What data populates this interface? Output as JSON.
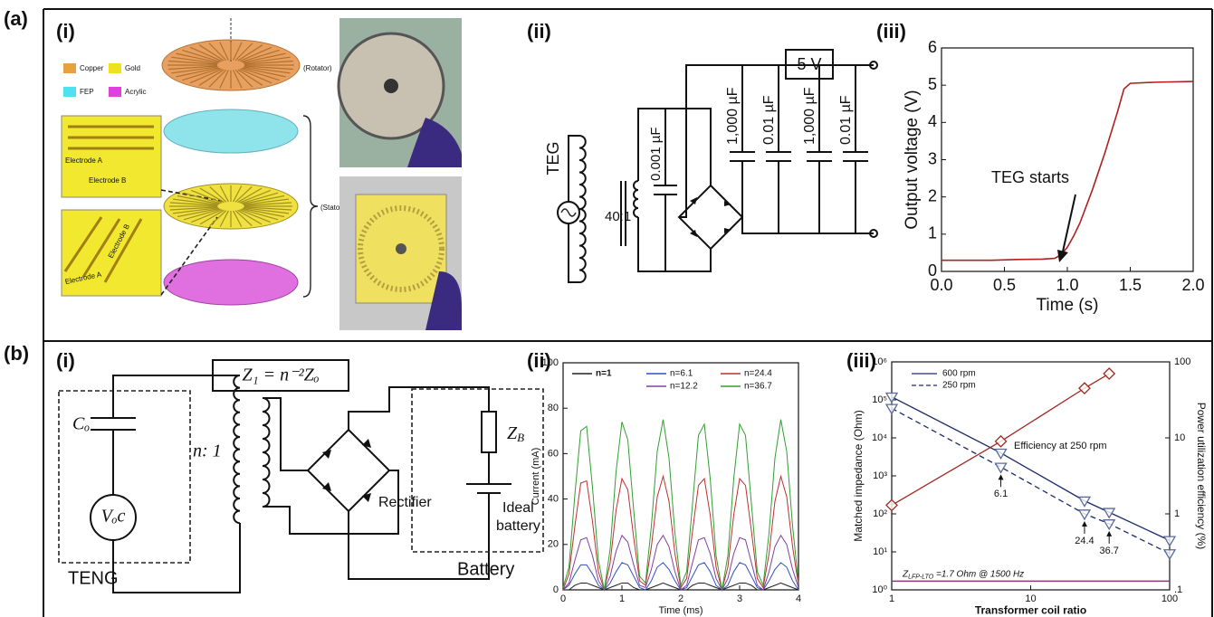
{
  "figure": {
    "panel_labels": [
      "(a)",
      "(b)"
    ],
    "subpanel_labels": [
      "(i)",
      "(ii)",
      "(iii)",
      "(i)",
      "(ii)",
      "(iii)"
    ],
    "a_i": {
      "materials": [
        "Copper",
        "Gold",
        "FEP",
        "Acrylic"
      ],
      "rotator": "(Rotator)",
      "stator": "(Stator)",
      "inset_top": [
        "Electrode A",
        "Electrode B"
      ],
      "inset_bottom": [
        "Electrode B",
        "Electrode A"
      ]
    },
    "a_ii": {
      "source": "TEG",
      "ratio": "40:1",
      "input_cap": "0.001 µF",
      "regulator": "5 V",
      "caps": [
        "1,000 µF",
        "0.01 µF",
        "1,000 µF",
        "0.01 µF"
      ]
    },
    "b_i": {
      "equation": "Z₁ = n⁻²Zₒ",
      "capacitor": "Cₒ",
      "source": "Vₒc",
      "ratio": "n: 1",
      "teng": "TENG",
      "rectifier": "Rectifier",
      "load": [
        "Z",
        "B"
      ],
      "ideal_battery": [
        "Ideal",
        "battery"
      ],
      "battery": "Battery"
    }
  },
  "chart_data": [
    {
      "type": "line",
      "x": [
        0,
        0.2,
        0.4,
        0.6,
        0.8,
        0.9,
        0.95,
        1.0,
        1.05,
        1.1,
        1.2,
        1.3,
        1.4,
        1.45,
        1.5,
        1.7,
        2.0
      ],
      "series": [
        {
          "color": "#b02020",
          "values": [
            0.3,
            0.3,
            0.3,
            0.32,
            0.33,
            0.35,
            0.45,
            0.65,
            0.95,
            1.3,
            2.2,
            3.2,
            4.3,
            4.9,
            5.05,
            5.08,
            5.1
          ]
        }
      ],
      "xlim": [
        0,
        2
      ],
      "ylim": [
        0,
        6
      ],
      "xticks": [
        {
          "value": 0,
          "label": "0.0"
        },
        0.5,
        {
          "value": 1,
          "label": "1.0"
        },
        1.5,
        {
          "value": 2,
          "label": "2.0"
        }
      ],
      "yticks": [
        0,
        1,
        2,
        3,
        4,
        5,
        6
      ],
      "xlabel": "Time (s)",
      "ylabel": "Output voltage (V)",
      "annotations": [
        "TEG starts"
      ]
    },
    {
      "type": "line",
      "x": [
        0,
        0.1,
        0.2,
        0.3,
        0.4,
        0.5,
        0.6,
        0.7,
        0.8,
        0.9,
        1.0,
        1.1,
        1.2,
        1.3,
        1.4,
        1.5,
        1.6,
        1.7,
        1.8,
        1.9,
        2.0,
        2.1,
        2.2,
        2.3,
        2.4,
        2.5,
        2.6,
        2.7,
        2.8,
        2.9,
        3.0,
        3.1,
        3.2,
        3.3,
        3.4,
        3.5,
        3.6,
        3.7,
        3.8,
        3.9,
        4.0
      ],
      "series": [
        {
          "name": "n=1",
          "color": "#202020",
          "values": [
            0,
            0,
            2,
            3,
            3,
            2,
            1,
            0,
            1,
            2,
            3,
            3,
            1,
            0,
            0,
            1,
            2,
            3,
            2,
            1,
            0,
            0,
            2,
            3,
            3,
            2,
            1,
            0,
            1,
            2,
            3,
            3,
            2,
            0,
            0,
            1,
            2,
            3,
            2,
            1,
            0
          ]
        },
        {
          "name": "n=6.1",
          "color": "#3050c0",
          "values": [
            0,
            2,
            7,
            11,
            11,
            7,
            2,
            0,
            3,
            8,
            12,
            11,
            6,
            1,
            0,
            4,
            10,
            12,
            9,
            4,
            0,
            1,
            6,
            11,
            12,
            8,
            2,
            0,
            2,
            8,
            12,
            11,
            6,
            1,
            0,
            4,
            9,
            12,
            10,
            4,
            0
          ]
        },
        {
          "name": "n=12.2",
          "color": "#8040a0",
          "values": [
            0,
            3,
            13,
            22,
            23,
            15,
            4,
            0,
            6,
            17,
            24,
            21,
            11,
            2,
            1,
            9,
            20,
            24,
            19,
            8,
            0,
            2,
            12,
            22,
            23,
            16,
            5,
            0,
            5,
            16,
            23,
            22,
            12,
            2,
            0,
            8,
            19,
            24,
            20,
            9,
            1
          ]
        },
        {
          "name": "n=24.4",
          "color": "#c03030",
          "values": [
            0,
            7,
            28,
            47,
            48,
            30,
            8,
            0,
            12,
            35,
            49,
            44,
            23,
            4,
            2,
            19,
            41,
            50,
            39,
            16,
            1,
            5,
            26,
            46,
            49,
            33,
            10,
            0,
            10,
            33,
            49,
            46,
            26,
            5,
            1,
            16,
            39,
            50,
            41,
            19,
            2
          ]
        },
        {
          "name": "n=36.7",
          "color": "#30a030",
          "values": [
            1,
            10,
            42,
            70,
            72,
            45,
            13,
            0,
            18,
            52,
            74,
            66,
            35,
            6,
            3,
            28,
            61,
            75,
            58,
            25,
            2,
            8,
            38,
            68,
            73,
            49,
            15,
            0,
            15,
            49,
            73,
            68,
            38,
            8,
            2,
            25,
            58,
            75,
            61,
            28,
            3
          ]
        }
      ],
      "xlim": [
        0,
        4
      ],
      "ylim": [
        0,
        100
      ],
      "xticks": [
        0,
        1,
        2,
        3,
        4
      ],
      "yticks": [
        0,
        20,
        40,
        60,
        80,
        100
      ],
      "xlabel": "Time (ms)",
      "ylabel": "Current (mA)"
    },
    {
      "type": "line",
      "xscale": "log",
      "yscale": "log",
      "y2scale": "log",
      "x": [
        1,
        6.1,
        24.4,
        36.7,
        100
      ],
      "series": [
        {
          "name": "600 rpm",
          "color": "#1a2a6a",
          "marker": "triangle-down",
          "values": [
            120000,
            4000,
            220,
            110,
            20
          ]
        },
        {
          "name": "250 rpm",
          "color": "#1a2a6a",
          "marker": "triangle-down",
          "dash": true,
          "values": [
            60000,
            1700,
            100,
            55,
            9
          ]
        },
        {
          "color": "#a02820",
          "marker": "diamond",
          "axis": "y2",
          "values": [
            1.3,
            9,
            45,
            70,
            null
          ]
        }
      ],
      "xlim": [
        1,
        100
      ],
      "ylim": [
        1,
        1000000
      ],
      "y2lim": [
        0.1,
        100
      ],
      "xticks": [
        1,
        10,
        100
      ],
      "yticks": [
        {
          "value": 1,
          "label": "10⁰"
        },
        {
          "value": 10,
          "label": "10¹"
        },
        {
          "value": 100,
          "label": "10²"
        },
        {
          "value": 1000,
          "label": "10³"
        },
        {
          "value": 10000,
          "label": "10⁴"
        },
        {
          "value": 100000,
          "label": "10⁵"
        },
        {
          "value": 1000000,
          "label": "10⁶"
        }
      ],
      "y2ticks": [
        {
          "value": 0.1,
          "label": ".1"
        },
        1,
        10,
        100
      ],
      "xlabel": "Transformer coil ratio",
      "ylabel": "Matched impedance (Ohm)",
      "y2label": "Power utilization efficiency (%)",
      "legend": "upper left",
      "annotations": [
        "Efficiency at 250 rpm"
      ],
      "point_labels": [
        "6.1",
        "24.4",
        "36.7"
      ],
      "reference_line": {
        "value": 1.7,
        "color": "#8a3a7a",
        "label": [
          "Z",
          "LFP-LTO",
          " =1.7 Ohm @ 1500 Hz"
        ]
      }
    }
  ]
}
